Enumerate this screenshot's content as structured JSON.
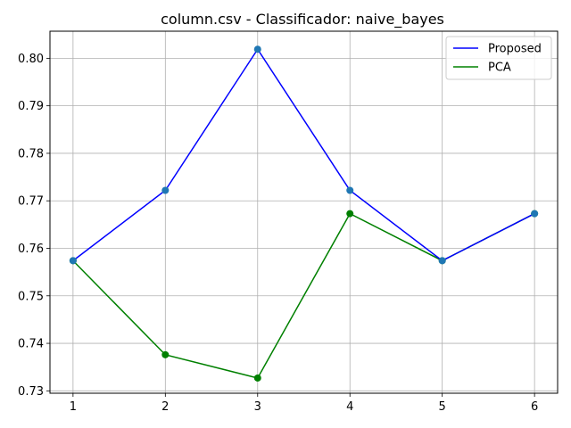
{
  "chart_data": {
    "type": "line",
    "title": "column.csv - Classificador: naive_bayes",
    "xlabel": "",
    "ylabel": "",
    "x": [
      1,
      2,
      3,
      4,
      5,
      6
    ],
    "xticks": [
      "1",
      "2",
      "3",
      "4",
      "5",
      "6"
    ],
    "yticks": [
      "0.73",
      "0.74",
      "0.75",
      "0.76",
      "0.77",
      "0.78",
      "0.79",
      "0.80"
    ],
    "xlim": [
      0.75,
      6.25
    ],
    "ylim": [
      0.7295,
      0.8057
    ],
    "grid": true,
    "legend_position": "top-right",
    "series": [
      {
        "name": "Proposed",
        "color": "#0000ff",
        "marker_color": "#1f77b4",
        "values": [
          0.7574,
          0.7722,
          0.8019,
          0.7722,
          0.7574,
          0.7673
        ]
      },
      {
        "name": "PCA",
        "color": "#008000",
        "marker_color": "#008000",
        "values": [
          0.7574,
          0.7376,
          0.7327,
          0.7673,
          0.7574,
          0.7673
        ]
      }
    ]
  }
}
